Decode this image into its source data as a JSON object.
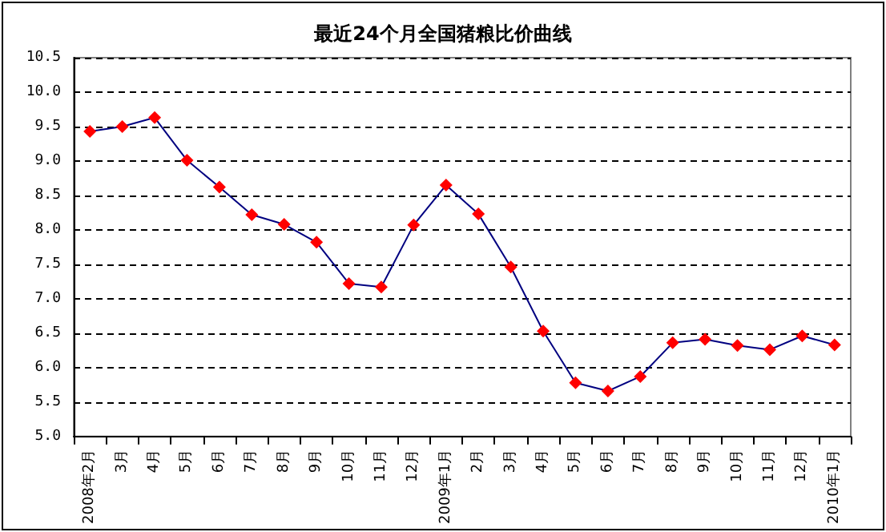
{
  "chart_data": {
    "type": "line",
    "title": "最近24个月全国猪粮比价曲线",
    "categories": [
      "2008年2月",
      "3月",
      "4月",
      "5月",
      "6月",
      "7月",
      "8月",
      "9月",
      "10月",
      "11月",
      "12月",
      "2009年1月",
      "2月",
      "3月",
      "4月",
      "5月",
      "6月",
      "7月",
      "8月",
      "9月",
      "10月",
      "11月",
      "12月",
      "2010年1月"
    ],
    "series": [
      {
        "color": "#000080",
        "values": [
          9.43,
          9.5,
          9.63,
          9.01,
          8.62,
          8.22,
          8.08,
          7.82,
          7.22,
          7.17,
          8.07,
          8.65,
          8.23,
          7.46,
          6.53,
          5.78,
          5.66,
          5.87,
          6.36,
          6.41,
          6.32,
          6.26,
          6.46,
          6.33
        ]
      }
    ],
    "ylim": [
      5.0,
      10.5
    ],
    "yticks": [
      {
        "value": 5,
        "label": "5.0"
      },
      {
        "value": 5.5,
        "label": "5.5"
      },
      {
        "value": 6,
        "label": "6.0"
      },
      {
        "value": 6.5,
        "label": "6.5"
      },
      {
        "value": 7,
        "label": "7.0"
      },
      {
        "value": 7.5,
        "label": "7.5"
      },
      {
        "value": 8,
        "label": "8.0"
      },
      {
        "value": 8.5,
        "label": "8.5"
      },
      {
        "value": 9,
        "label": "9.0"
      },
      {
        "value": 9.5,
        "label": "9.5"
      },
      {
        "value": 10,
        "label": "10.0"
      },
      {
        "value": 10.5,
        "label": "10.5"
      }
    ],
    "grid": "y",
    "marker": "diamond",
    "line_style": "solid"
  }
}
